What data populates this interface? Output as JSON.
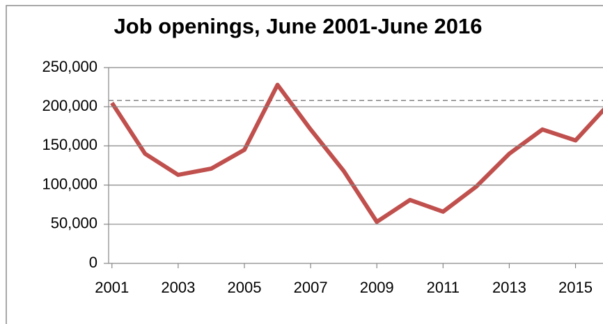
{
  "chart_data": {
    "type": "line",
    "title": "Job openings, June 2001-June 2016",
    "x": [
      2001,
      2002,
      2003,
      2004,
      2005,
      2006,
      2007,
      2008,
      2009,
      2010,
      2011,
      2012,
      2013,
      2014,
      2015,
      2016
    ],
    "series": [
      {
        "name": "Job openings",
        "color": "#c0504d",
        "values": [
          205000,
          140000,
          113000,
          121000,
          145000,
          228000,
          171000,
          118000,
          53000,
          81000,
          66000,
          98000,
          140000,
          171000,
          157000,
          203000
        ]
      }
    ],
    "xlim": [
      2000.9,
      2015.83
    ],
    "xticks": [
      2001,
      2003,
      2005,
      2007,
      2009,
      2011,
      2013,
      2015
    ],
    "ylim": [
      0,
      250000
    ],
    "yticks": [
      0,
      {
        "value": 50000,
        "label": "50,000"
      },
      {
        "value": 100000,
        "label": "100,000"
      },
      {
        "value": 150000,
        "label": "150,000"
      },
      {
        "value": 200000,
        "label": "200,000"
      },
      {
        "value": 250000,
        "label": "250,000"
      }
    ],
    "grid": true,
    "reference_value": 208000,
    "legend": false
  }
}
